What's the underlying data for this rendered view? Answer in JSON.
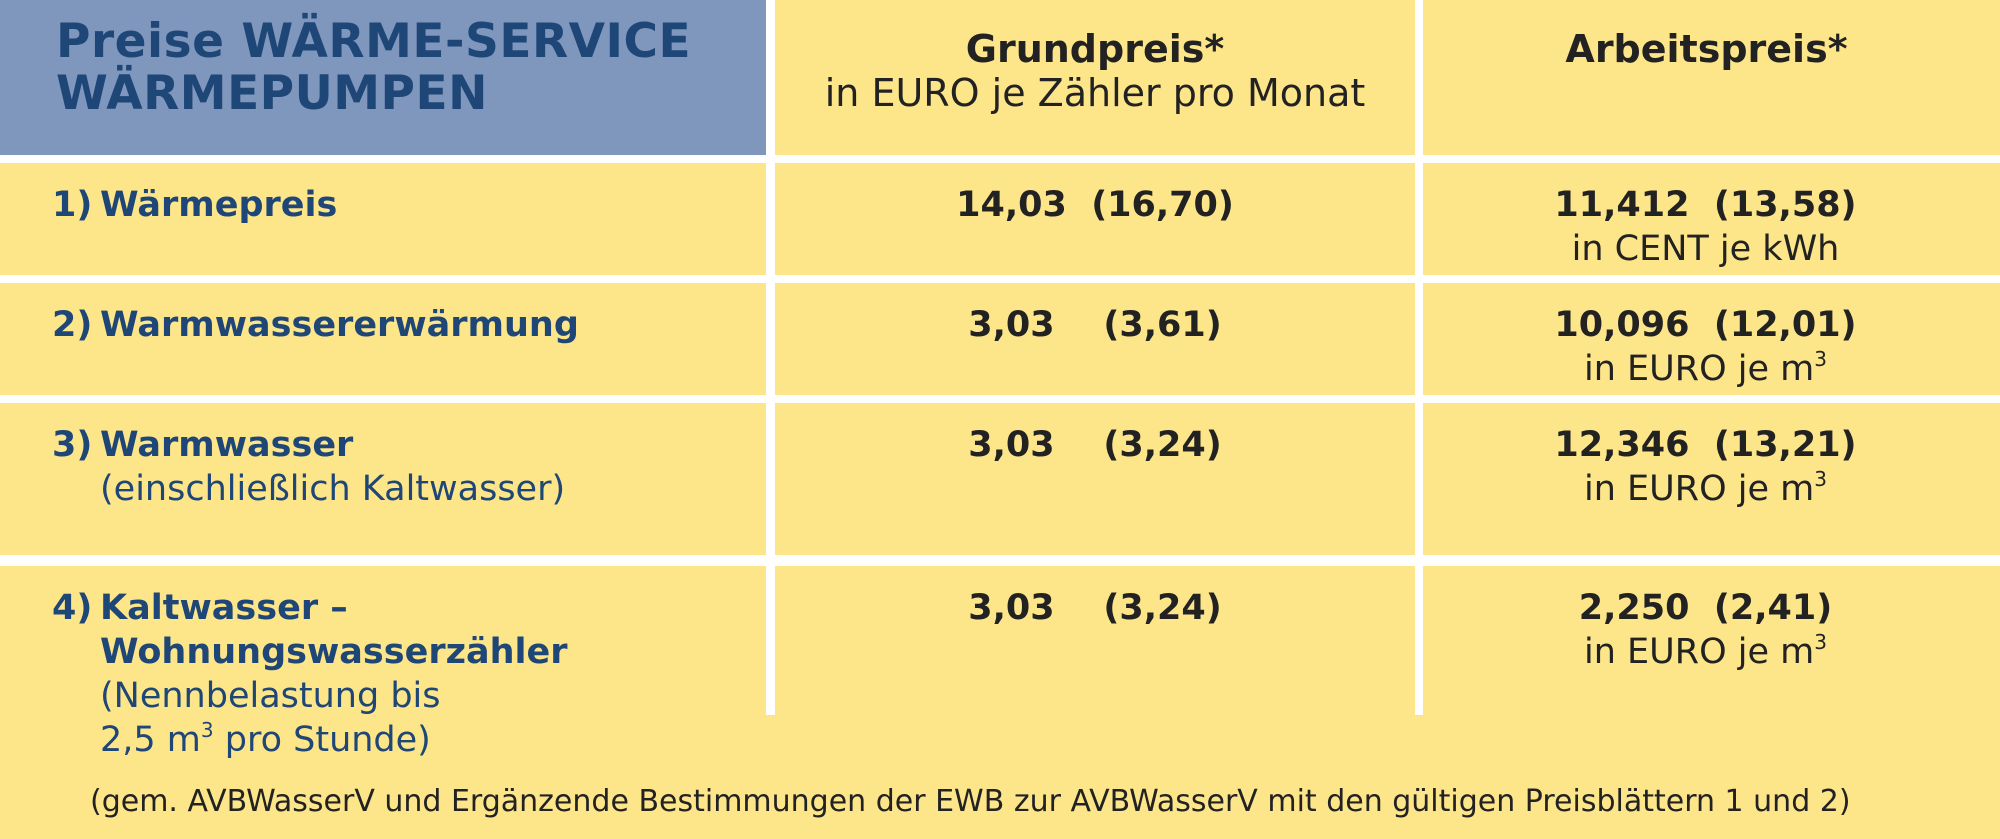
{
  "header": {
    "title_line1": "Preise WÄRME-SERVICE",
    "title_line2": "WÄRMEPUMPEN",
    "grundpreis_label": "Grundpreis*",
    "grundpreis_sub": "in EURO je Zähler pro Monat",
    "arbeitspreis_label": "Arbeitspreis*"
  },
  "rows": [
    {
      "num": "1)",
      "name": "Wärmepreis",
      "grundpreis": "14,03  (16,70)",
      "arbeitspreis": "11,412  (13,58)",
      "arbeitspreis_unit": "in CENT je kWh"
    },
    {
      "num": "2)",
      "name": "Warmwassererwärmung",
      "grundpreis": "3,03    (3,61)",
      "arbeitspreis": "10,096  (12,01)",
      "arbeitspreis_unit": "in EURO je m",
      "arbeitspreis_unit_sup": "3"
    },
    {
      "num": "3)",
      "name": "Warmwasser",
      "name_sub": "(einschließlich Kaltwasser)",
      "grundpreis": "3,03    (3,24)",
      "arbeitspreis": "12,346  (13,21)",
      "arbeitspreis_unit": "in EURO je m",
      "arbeitspreis_unit_sup": "3"
    },
    {
      "num": "4)",
      "name": "Kaltwasser –",
      "name_line2": "Wohnungswasserzähler",
      "name_sub1": "(Nennbelastung bis",
      "name_sub2_pre": "2,5 m",
      "name_sub2_sup": "3",
      "name_sub2_post": " pro Stunde)",
      "grundpreis": "3,03    (3,24)",
      "arbeitspreis": "2,250  (2,41)",
      "arbeitspreis_unit": "in EURO je m",
      "arbeitspreis_unit_sup": "3"
    }
  ],
  "footnote": "(gem. AVBWasserV und Ergänzende Bestimmungen der EWB zur AVBWasserV mit den gültigen Preisblättern 1 und 2)",
  "colors": {
    "cell_yellow": "#fde58a",
    "header_blue": "#7f96bd",
    "label_blue": "#1e4677",
    "text_dark": "#222222"
  }
}
